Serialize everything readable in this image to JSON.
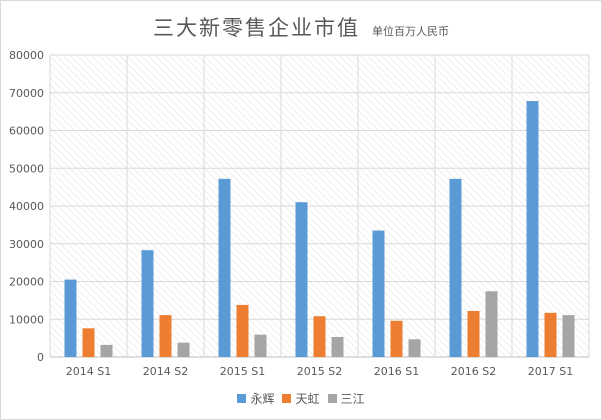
{
  "chart_data": {
    "type": "bar",
    "title": "三大新零售企业市值",
    "subtitle": "单位百万人民币",
    "xlabel": "",
    "ylabel": "",
    "categories": [
      "2014 S1",
      "2014 S2",
      "2015 S1",
      "2015 S2",
      "2016 S1",
      "2016 S2",
      "2017 S1"
    ],
    "ylim": [
      0,
      80000
    ],
    "yticks": [
      0,
      10000,
      20000,
      30000,
      40000,
      50000,
      60000,
      70000,
      80000
    ],
    "grid": true,
    "legend_position": "bottom",
    "series": [
      {
        "name": "永辉",
        "color": "#5b9bd5",
        "values": [
          20500,
          28300,
          47200,
          41000,
          33500,
          47200,
          67800
        ]
      },
      {
        "name": "天虹",
        "color": "#ed7d31",
        "values": [
          7600,
          11100,
          13800,
          10800,
          9600,
          12200,
          11700
        ]
      },
      {
        "name": "三江",
        "color": "#a5a5a5",
        "values": [
          3200,
          3800,
          5900,
          5300,
          4700,
          17400,
          11100
        ]
      }
    ]
  }
}
